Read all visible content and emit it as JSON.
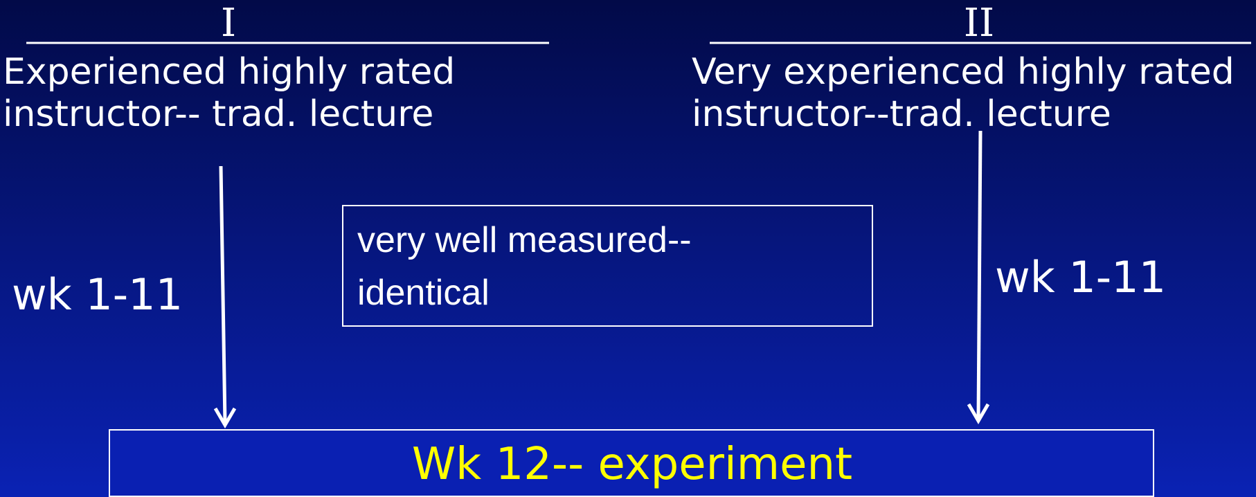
{
  "groups": [
    {
      "label": "I",
      "description": [
        "Experienced highly rated",
        "instructor-- trad. lecture"
      ],
      "period": "wk 1-11"
    },
    {
      "label": "II",
      "description": [
        "Very experienced highly rated",
        "instructor--trad. lecture"
      ],
      "period": "wk 1-11"
    }
  ],
  "note": [
    "very well measured--",
    "identical"
  ],
  "outcome": "Wk 12-- experiment"
}
